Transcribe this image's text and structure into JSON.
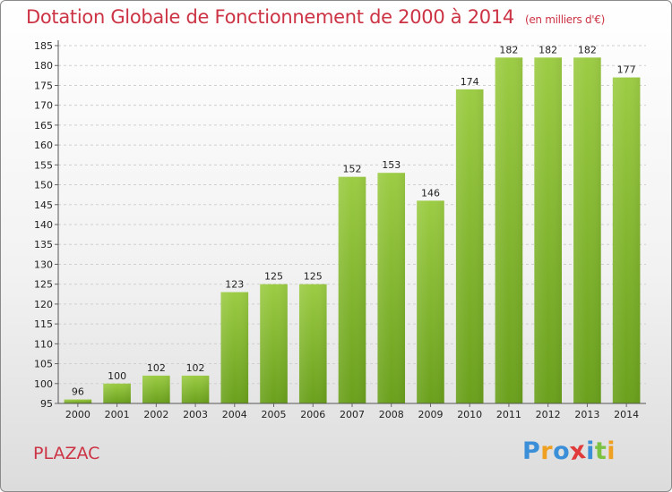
{
  "header": {
    "title": "Dotation Globale de Fonctionnement de 2000 à 2014",
    "subtitle": "(en milliers d'€)"
  },
  "footer": {
    "commune": "PLAZAC",
    "logo": {
      "letters": [
        "P",
        "r",
        "o",
        "x",
        "i",
        "t",
        "i"
      ],
      "colors": [
        "#3a8fd8",
        "#f0a020",
        "#3a8fd8",
        "#e03a3a",
        "#3a8fd8",
        "#7cc242",
        "#f0a020"
      ]
    }
  },
  "chart_data": {
    "type": "bar",
    "categories": [
      "2000",
      "2001",
      "2002",
      "2003",
      "2004",
      "2005",
      "2006",
      "2007",
      "2008",
      "2009",
      "2010",
      "2011",
      "2012",
      "2013",
      "2014"
    ],
    "values": [
      96,
      100,
      102,
      102,
      123,
      125,
      125,
      152,
      153,
      146,
      174,
      182,
      182,
      182,
      177
    ],
    "ylim": [
      95,
      185
    ],
    "yticks": [
      95,
      100,
      105,
      110,
      115,
      120,
      125,
      130,
      135,
      140,
      145,
      150,
      155,
      160,
      165,
      170,
      175,
      180,
      185
    ],
    "grid": true,
    "bar_color_top": "#9ccc44",
    "bar_color_bottom": "#6aa01c"
  }
}
